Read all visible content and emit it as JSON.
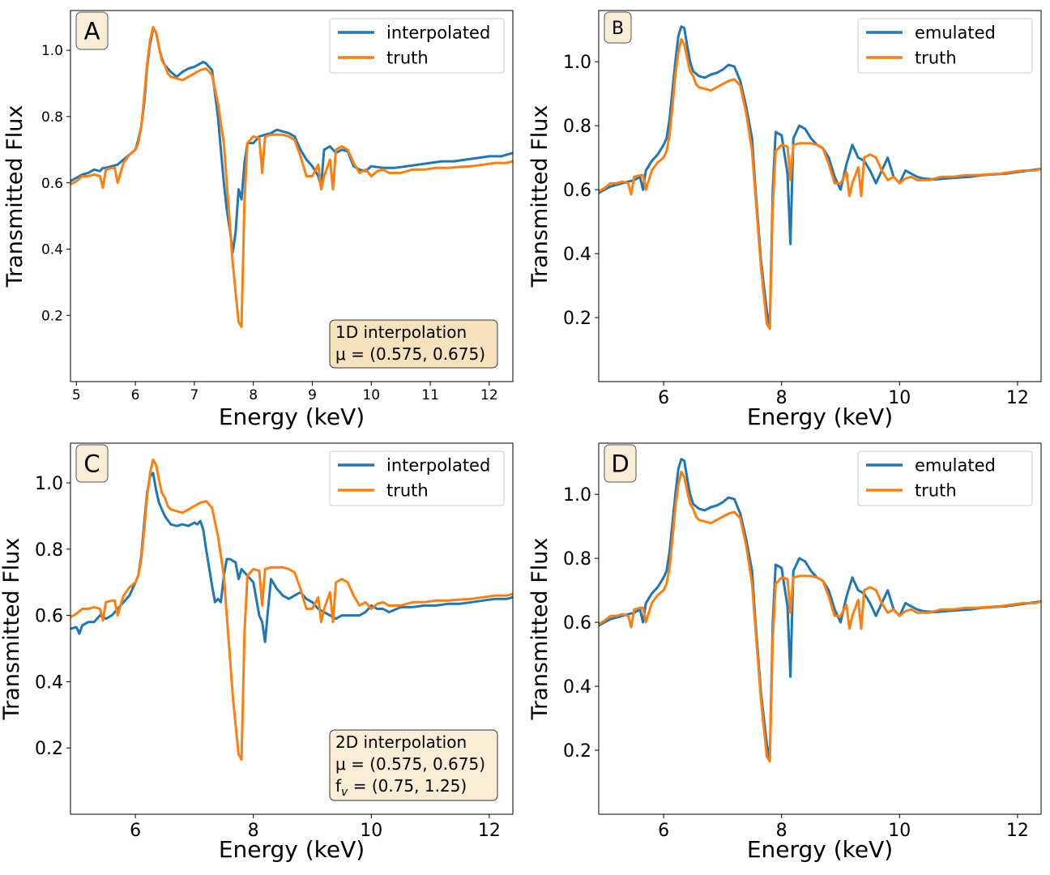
{
  "colors": {
    "series_a": "#1f77b4",
    "truth": "#ff7f0e",
    "label_box": "#f5deb3"
  },
  "truth_curve": {
    "x": [
      4.9,
      5.0,
      5.1,
      5.2,
      5.3,
      5.4,
      5.45,
      5.5,
      5.6,
      5.65,
      5.7,
      5.8,
      5.9,
      6.0,
      6.05,
      6.1,
      6.15,
      6.2,
      6.25,
      6.3,
      6.35,
      6.4,
      6.45,
      6.5,
      6.55,
      6.6,
      6.7,
      6.8,
      6.9,
      7.0,
      7.1,
      7.2,
      7.3,
      7.4,
      7.5,
      7.55,
      7.6,
      7.65,
      7.7,
      7.75,
      7.8,
      7.85,
      7.9,
      8.0,
      8.1,
      8.15,
      8.2,
      8.3,
      8.4,
      8.5,
      8.6,
      8.7,
      8.8,
      8.9,
      9.0,
      9.1,
      9.15,
      9.2,
      9.3,
      9.35,
      9.4,
      9.5,
      9.6,
      9.7,
      9.8,
      9.9,
      10.0,
      10.1,
      10.2,
      10.3,
      10.5,
      10.7,
      10.9,
      11.1,
      11.3,
      11.5,
      11.7,
      11.9,
      12.1,
      12.3,
      12.4
    ],
    "y": [
      0.595,
      0.605,
      0.62,
      0.62,
      0.625,
      0.62,
      0.585,
      0.64,
      0.645,
      0.645,
      0.6,
      0.66,
      0.685,
      0.7,
      0.72,
      0.77,
      0.86,
      0.96,
      1.03,
      1.07,
      1.055,
      1.01,
      0.97,
      0.955,
      0.93,
      0.92,
      0.915,
      0.91,
      0.92,
      0.93,
      0.94,
      0.945,
      0.925,
      0.84,
      0.72,
      0.6,
      0.48,
      0.36,
      0.27,
      0.18,
      0.165,
      0.55,
      0.72,
      0.74,
      0.735,
      0.63,
      0.74,
      0.745,
      0.745,
      0.745,
      0.74,
      0.73,
      0.68,
      0.62,
      0.62,
      0.655,
      0.58,
      0.62,
      0.67,
      0.58,
      0.7,
      0.71,
      0.7,
      0.66,
      0.63,
      0.64,
      0.62,
      0.635,
      0.64,
      0.63,
      0.63,
      0.64,
      0.64,
      0.645,
      0.645,
      0.648,
      0.65,
      0.655,
      0.66,
      0.66,
      0.665
    ]
  },
  "chart_data": [
    {
      "type": "line",
      "panel_label": "A",
      "xlabel": "Energy (keV)",
      "ylabel": "Transmitted Flux",
      "xlim": [
        4.9,
        12.4
      ],
      "ylim": [
        0.0,
        1.12
      ],
      "xticks": [
        5,
        6,
        7,
        8,
        9,
        10,
        11,
        12
      ],
      "yticks": [
        0.2,
        0.4,
        0.6,
        0.8,
        1.0
      ],
      "tick_font": "small",
      "legend": [
        "interpolated",
        "truth"
      ],
      "legend_position": "top-right",
      "annotation": [
        "1D interpolation",
        "μ = (0.575, 0.675)"
      ],
      "series": [
        {
          "name": "interpolated",
          "x": [
            4.9,
            5.0,
            5.1,
            5.2,
            5.3,
            5.4,
            5.45,
            5.5,
            5.6,
            5.7,
            5.8,
            5.9,
            6.0,
            6.05,
            6.1,
            6.15,
            6.2,
            6.25,
            6.3,
            6.35,
            6.4,
            6.45,
            6.5,
            6.6,
            6.7,
            6.8,
            6.9,
            7.0,
            7.1,
            7.15,
            7.2,
            7.3,
            7.4,
            7.45,
            7.5,
            7.55,
            7.6,
            7.65,
            7.7,
            7.75,
            7.8,
            7.85,
            7.9,
            8.0,
            8.1,
            8.2,
            8.3,
            8.4,
            8.5,
            8.6,
            8.7,
            8.8,
            8.9,
            9.0,
            9.1,
            9.15,
            9.2,
            9.3,
            9.4,
            9.5,
            9.6,
            9.7,
            9.8,
            9.9,
            10.0,
            10.2,
            10.4,
            10.6,
            10.8,
            11.0,
            11.2,
            11.4,
            11.6,
            11.8,
            12.0,
            12.2,
            12.4
          ],
          "y": [
            0.605,
            0.615,
            0.625,
            0.63,
            0.64,
            0.635,
            0.645,
            0.645,
            0.65,
            0.655,
            0.67,
            0.685,
            0.7,
            0.73,
            0.77,
            0.84,
            0.95,
            1.02,
            1.065,
            1.055,
            1.01,
            0.975,
            0.955,
            0.935,
            0.92,
            0.935,
            0.945,
            0.95,
            0.96,
            0.965,
            0.96,
            0.94,
            0.8,
            0.7,
            0.6,
            0.52,
            0.46,
            0.39,
            0.45,
            0.58,
            0.55,
            0.66,
            0.72,
            0.72,
            0.74,
            0.745,
            0.75,
            0.76,
            0.755,
            0.75,
            0.74,
            0.7,
            0.67,
            0.65,
            0.62,
            0.59,
            0.7,
            0.71,
            0.69,
            0.7,
            0.695,
            0.65,
            0.64,
            0.635,
            0.65,
            0.645,
            0.645,
            0.65,
            0.655,
            0.66,
            0.665,
            0.665,
            0.67,
            0.675,
            0.68,
            0.68,
            0.69
          ]
        },
        {
          "name": "truth",
          "ref": "truth_curve"
        }
      ]
    },
    {
      "type": "line",
      "panel_label": "B",
      "xlabel": "Energy (keV)",
      "ylabel": "Transmitted Flux",
      "xlim": [
        4.9,
        12.4
      ],
      "ylim": [
        0.0,
        1.16
      ],
      "xticks": [
        6,
        8,
        10,
        12
      ],
      "yticks": [
        0.2,
        0.4,
        0.6,
        0.8,
        1.0
      ],
      "tick_font": "large",
      "legend": [
        "emulated",
        "truth"
      ],
      "legend_position": "top-right",
      "series": [
        {
          "name": "emulated",
          "x": [
            4.9,
            5.0,
            5.1,
            5.2,
            5.3,
            5.4,
            5.5,
            5.6,
            5.65,
            5.7,
            5.8,
            5.9,
            6.0,
            6.05,
            6.1,
            6.15,
            6.2,
            6.25,
            6.3,
            6.35,
            6.4,
            6.45,
            6.5,
            6.6,
            6.7,
            6.8,
            6.9,
            7.0,
            7.1,
            7.2,
            7.3,
            7.4,
            7.5,
            7.55,
            7.6,
            7.65,
            7.7,
            7.75,
            7.8,
            7.85,
            7.9,
            8.0,
            8.1,
            8.15,
            8.2,
            8.3,
            8.4,
            8.5,
            8.6,
            8.7,
            8.8,
            8.9,
            9.0,
            9.1,
            9.2,
            9.3,
            9.4,
            9.5,
            9.6,
            9.7,
            9.8,
            9.9,
            10.0,
            10.1,
            10.2,
            10.3,
            10.4,
            10.6,
            10.8,
            11.0,
            11.2,
            11.4,
            11.6,
            11.8,
            12.0,
            12.2,
            12.4
          ],
          "y": [
            0.59,
            0.6,
            0.61,
            0.615,
            0.62,
            0.625,
            0.63,
            0.64,
            0.6,
            0.66,
            0.69,
            0.71,
            0.74,
            0.76,
            0.82,
            0.91,
            1.0,
            1.08,
            1.11,
            1.105,
            1.05,
            1.0,
            0.97,
            0.955,
            0.95,
            0.96,
            0.965,
            0.975,
            0.99,
            0.985,
            0.94,
            0.86,
            0.76,
            0.62,
            0.5,
            0.38,
            0.3,
            0.22,
            0.17,
            0.6,
            0.78,
            0.77,
            0.65,
            0.43,
            0.76,
            0.8,
            0.79,
            0.76,
            0.74,
            0.73,
            0.7,
            0.64,
            0.6,
            0.68,
            0.74,
            0.7,
            0.69,
            0.66,
            0.62,
            0.66,
            0.7,
            0.64,
            0.62,
            0.66,
            0.65,
            0.64,
            0.635,
            0.632,
            0.635,
            0.638,
            0.64,
            0.645,
            0.648,
            0.65,
            0.655,
            0.66,
            0.665
          ]
        },
        {
          "name": "truth",
          "ref": "truth_curve"
        }
      ]
    },
    {
      "type": "line",
      "panel_label": "C",
      "xlabel": "Energy (keV)",
      "ylabel": "Transmitted Flux",
      "xlim": [
        4.9,
        12.4
      ],
      "ylim": [
        0.0,
        1.12
      ],
      "xticks": [
        6,
        8,
        10,
        12
      ],
      "yticks": [
        0.2,
        0.4,
        0.6,
        0.8,
        1.0
      ],
      "tick_font": "large",
      "legend": [
        "interpolated",
        "truth"
      ],
      "legend_position": "top-right",
      "annotation": [
        "2D interpolation",
        "μ = (0.575, 0.675)",
        "f_v = (0.75, 1.25)"
      ],
      "series": [
        {
          "name": "interpolated",
          "x": [
            4.9,
            5.0,
            5.05,
            5.1,
            5.2,
            5.3,
            5.4,
            5.5,
            5.6,
            5.7,
            5.8,
            5.9,
            6.0,
            6.05,
            6.1,
            6.15,
            6.2,
            6.25,
            6.3,
            6.35,
            6.4,
            6.45,
            6.5,
            6.6,
            6.7,
            6.8,
            6.9,
            7.0,
            7.05,
            7.1,
            7.15,
            7.2,
            7.3,
            7.35,
            7.4,
            7.45,
            7.5,
            7.55,
            7.6,
            7.7,
            7.75,
            7.8,
            7.9,
            8.0,
            8.1,
            8.15,
            8.2,
            8.25,
            8.3,
            8.4,
            8.5,
            8.6,
            8.7,
            8.8,
            8.9,
            9.0,
            9.1,
            9.2,
            9.3,
            9.4,
            9.5,
            9.6,
            9.7,
            9.8,
            9.9,
            10.0,
            10.1,
            10.2,
            10.3,
            10.5,
            10.7,
            10.9,
            11.1,
            11.3,
            11.5,
            11.7,
            11.9,
            12.1,
            12.3,
            12.4
          ],
          "y": [
            0.56,
            0.565,
            0.545,
            0.57,
            0.58,
            0.58,
            0.6,
            0.59,
            0.6,
            0.62,
            0.64,
            0.66,
            0.7,
            0.72,
            0.78,
            0.88,
            0.97,
            1.02,
            1.03,
            0.98,
            0.94,
            0.92,
            0.9,
            0.875,
            0.87,
            0.875,
            0.87,
            0.88,
            0.875,
            0.885,
            0.86,
            0.8,
            0.69,
            0.64,
            0.65,
            0.64,
            0.72,
            0.77,
            0.77,
            0.76,
            0.71,
            0.74,
            0.72,
            0.7,
            0.6,
            0.58,
            0.52,
            0.62,
            0.71,
            0.68,
            0.66,
            0.65,
            0.66,
            0.67,
            0.65,
            0.64,
            0.62,
            0.61,
            0.6,
            0.59,
            0.6,
            0.6,
            0.6,
            0.6,
            0.61,
            0.63,
            0.62,
            0.62,
            0.61,
            0.625,
            0.625,
            0.63,
            0.63,
            0.635,
            0.635,
            0.64,
            0.645,
            0.65,
            0.65,
            0.655
          ]
        },
        {
          "name": "truth",
          "ref": "truth_curve"
        }
      ]
    },
    {
      "type": "line",
      "panel_label": "D",
      "xlabel": "Energy (keV)",
      "ylabel": "Transmitted Flux",
      "xlim": [
        4.9,
        12.4
      ],
      "ylim": [
        0.0,
        1.16
      ],
      "xticks": [
        6,
        8,
        10,
        12
      ],
      "yticks": [
        0.2,
        0.4,
        0.6,
        0.8,
        1.0
      ],
      "tick_font": "large",
      "legend": [
        "emulated",
        "truth"
      ],
      "legend_position": "top-right",
      "series": [
        {
          "name": "emulated",
          "ref": "panel_B_emulated"
        },
        {
          "name": "truth",
          "ref": "truth_curve"
        }
      ]
    }
  ]
}
